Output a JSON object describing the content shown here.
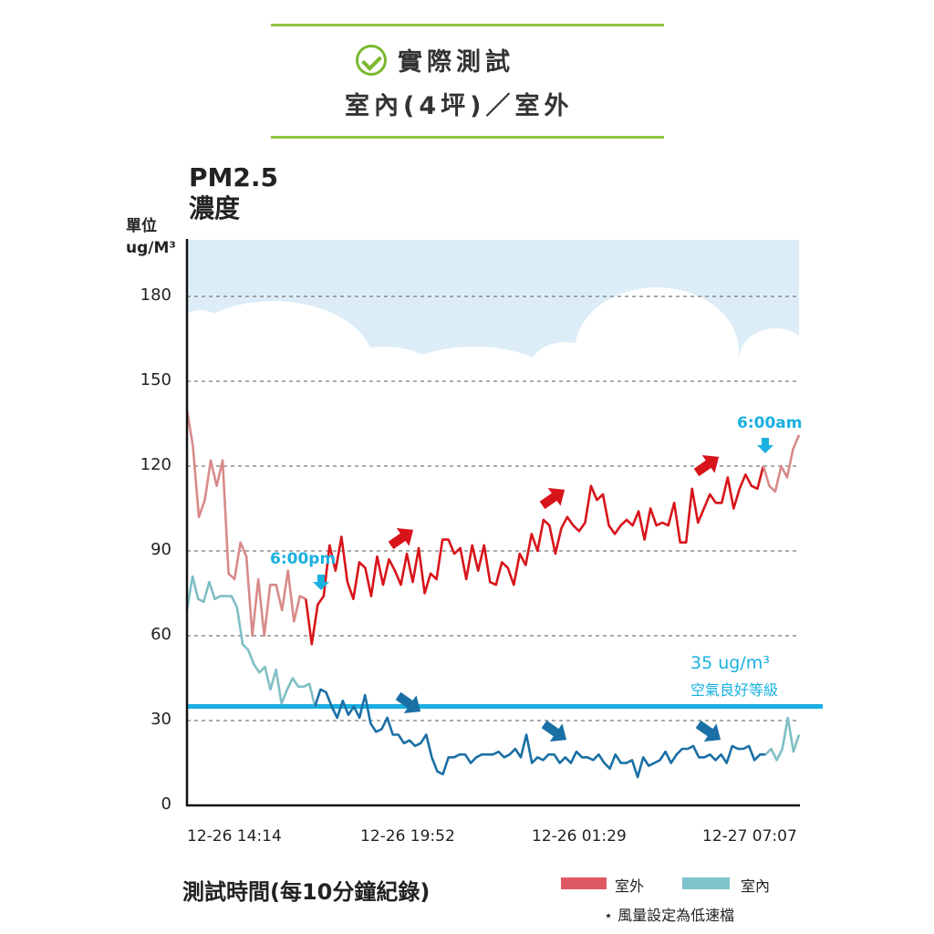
{
  "header": {
    "title": "實際測試",
    "subtitle": "室內(4坪)／室外",
    "accent": "#8dc63f"
  },
  "chart_data": {
    "type": "line",
    "title": "PM2.5 濃度",
    "title_line1": "PM2.5",
    "title_line2": "濃度",
    "ylabel_line1": "單位",
    "ylabel_line2": "ug/M³",
    "xlabel": "測試時間(每10分鐘紀錄)",
    "ylim": [
      0,
      180
    ],
    "yticks": [
      "0",
      "30",
      "60",
      "90",
      "120",
      "150",
      "180"
    ],
    "xticks": [
      "12-26 14:14",
      "12-26 19:52",
      "12-26 01:29",
      "12-27 07:07"
    ],
    "grid": true,
    "reference_line": {
      "value": 35,
      "label": "35 ug/m³",
      "sublabel": "空氣良好等級",
      "color": "#1ab0e0"
    },
    "annotations": [
      {
        "text": "6:00pm"
      },
      {
        "text": "6:00am"
      }
    ],
    "legend": {
      "position": "bottom-right",
      "items": [
        {
          "name": "室外",
          "color": "#e05a63"
        },
        {
          "name": "室內",
          "color": "#7fc3cc"
        }
      ]
    },
    "footnote": "⋆ 風量設定為低速檔",
    "series": [
      {
        "name": "室外",
        "color": "#d7141a",
        "faded_color": "#d88a8a",
        "highlight_start": 20,
        "highlight_end_from_last": 6,
        "values": [
          140,
          127,
          102,
          108,
          122,
          113,
          122,
          82,
          80,
          93,
          88,
          60,
          80,
          60,
          78,
          78,
          69,
          83,
          65,
          74,
          73,
          57,
          71,
          74,
          92,
          83,
          95,
          79,
          73,
          86,
          84,
          74,
          88,
          78,
          87,
          83,
          78,
          89,
          79,
          91,
          75,
          82,
          80,
          94,
          94,
          89,
          91,
          80,
          92,
          83,
          92,
          79,
          78,
          86,
          84,
          78,
          89,
          85,
          96,
          90,
          101,
          99,
          89,
          98,
          102,
          99,
          97,
          100,
          113,
          108,
          110,
          99,
          96,
          99,
          101,
          99,
          104,
          94,
          105,
          99,
          100,
          99,
          107,
          93,
          93,
          112,
          100,
          105,
          110,
          107,
          107,
          116,
          105,
          112,
          117,
          113,
          112,
          120,
          113,
          111,
          120,
          116,
          126,
          131
        ]
      },
      {
        "name": "室內",
        "color": "#1a6fa5",
        "faded_color": "#7fbfc4",
        "highlight_start": 23,
        "highlight_end_from_last": 6,
        "values": [
          69,
          81,
          73,
          72,
          79,
          73,
          74,
          74,
          74,
          70,
          57,
          55,
          50,
          47,
          49,
          41,
          48,
          36,
          41,
          45,
          42,
          42,
          43,
          35,
          41,
          40,
          35,
          31,
          37,
          32,
          35,
          31,
          39,
          29,
          26,
          27,
          31,
          25,
          25,
          22,
          23,
          21,
          22,
          25,
          17,
          12,
          11,
          17,
          17,
          18,
          18,
          15,
          17,
          18,
          18,
          18,
          19,
          17,
          18,
          20,
          17,
          25,
          15,
          17,
          16,
          18,
          18,
          15,
          17,
          15,
          19,
          17,
          17,
          16,
          18,
          15,
          13,
          18,
          15,
          15,
          16,
          10,
          17,
          14,
          15,
          16,
          19,
          15,
          18,
          20,
          20,
          21,
          17,
          17,
          18,
          16,
          18,
          15,
          21,
          20,
          20,
          21,
          16,
          18,
          18,
          20,
          16,
          20,
          31,
          19,
          25
        ]
      }
    ]
  }
}
